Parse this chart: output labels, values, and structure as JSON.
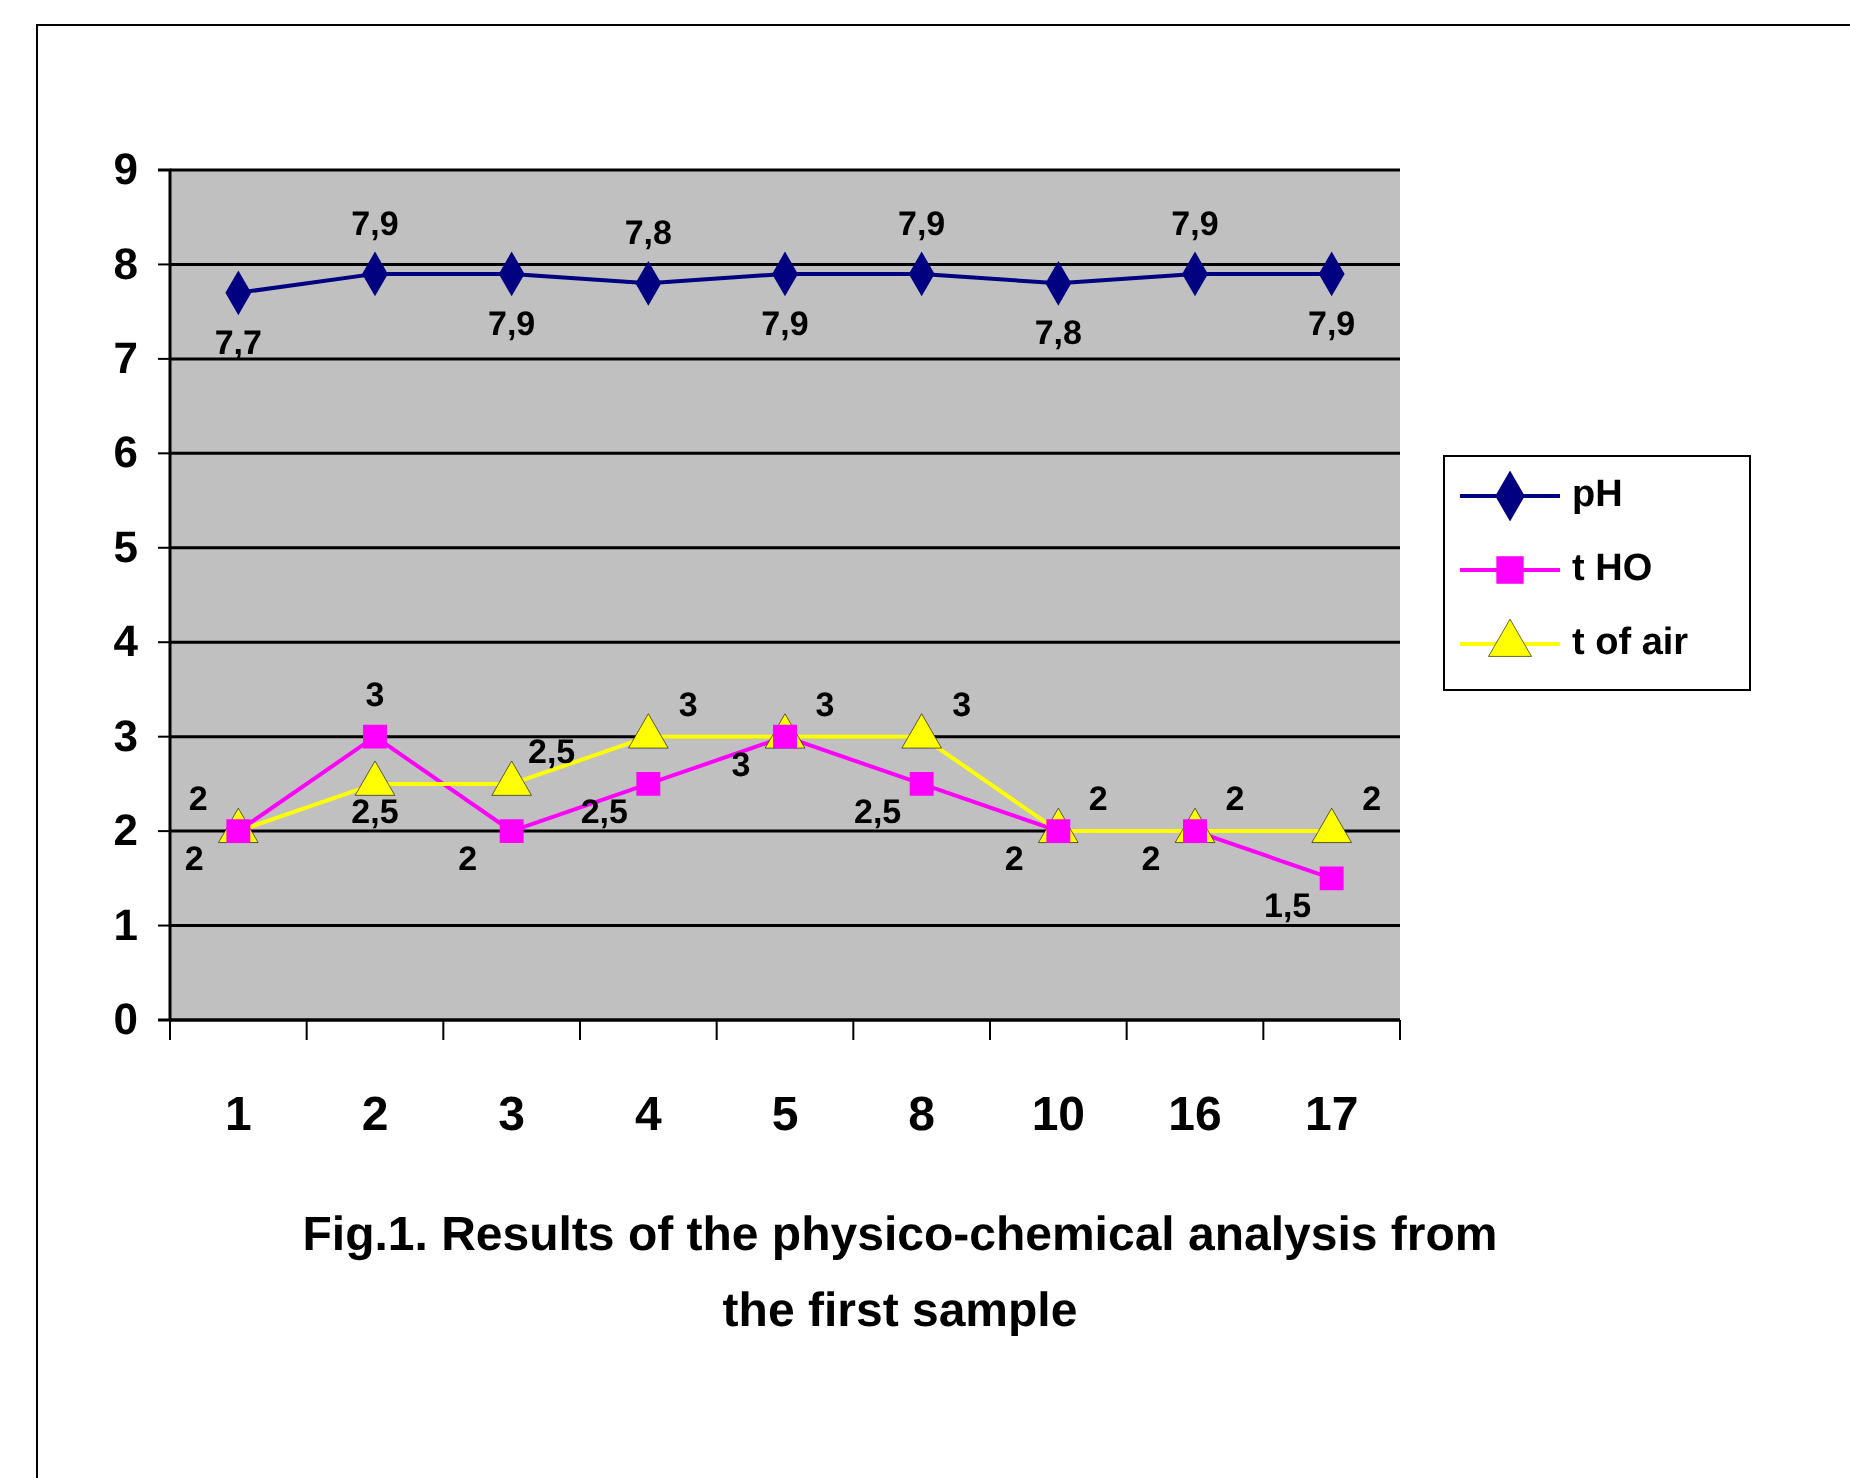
{
  "chart_data": {
    "type": "line",
    "title": "Fig.1. Results of the physico-chemical analysis from the first sample",
    "categories": [
      "1",
      "2",
      "3",
      "4",
      "5",
      "8",
      "10",
      "16",
      "17"
    ],
    "ylim": [
      0,
      9
    ],
    "yticks": [
      0,
      1,
      2,
      3,
      4,
      5,
      6,
      7,
      8,
      9
    ],
    "grid": "y",
    "legend": "right",
    "series": [
      {
        "name": "pH",
        "color": "#000080",
        "marker": "diamond",
        "values": [
          7.7,
          7.9,
          7.9,
          7.8,
          7.9,
          7.9,
          7.8,
          7.9,
          7.9
        ],
        "value_labels": [
          "7,7",
          "7,9",
          "7,9",
          "7,8",
          "7,9",
          "7,9",
          "7,8",
          "7,9",
          "7,9"
        ]
      },
      {
        "name": "t HO",
        "color": "#ff00ff",
        "marker": "square",
        "values": [
          2,
          3,
          2,
          2.5,
          3,
          2.5,
          2,
          2,
          1.5
        ],
        "value_labels": [
          "2",
          "3",
          "2",
          "2,5",
          "3",
          "2,5",
          "2",
          "2",
          "1,5"
        ]
      },
      {
        "name": "t of air",
        "color": "#ffff00",
        "marker": "triangle",
        "values": [
          2,
          2.5,
          2.5,
          3,
          3,
          3,
          2,
          2,
          2
        ],
        "value_labels": [
          "2",
          "2,5",
          "2,5",
          "3",
          "3",
          "3",
          "2",
          "2",
          "2"
        ]
      }
    ]
  }
}
